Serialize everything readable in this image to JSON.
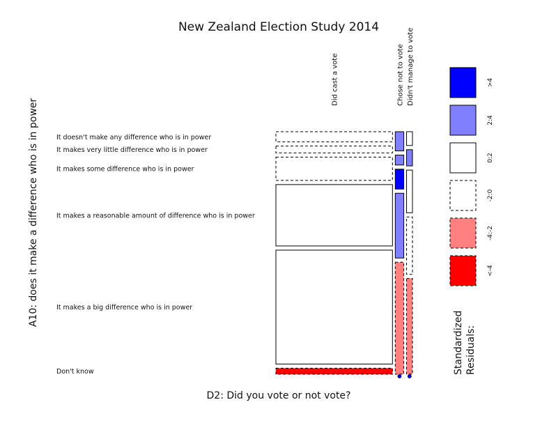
{
  "chart_data": {
    "type": "mosaic",
    "title": "New Zealand Election Study 2014",
    "xlabel": "D2: Did you vote or not vote?",
    "ylabel": "A10: does it make a difference who is in power",
    "columns": [
      "Did cast a vote",
      "Chose not to vote",
      "Didn't manage to vote"
    ],
    "rows": [
      "It doesn't make any difference who is in power",
      "It makes very little difference who is in power",
      "It makes some difference who is in power",
      "It makes a reasonable amount of difference who is in power",
      "It makes a big difference who is in power",
      "Don't know"
    ],
    "column_shares": [
      0.89,
      0.065,
      0.045
    ],
    "cell_shares": [
      [
        0.046,
        0.031,
        0.105,
        0.277,
        0.514,
        0.027
      ],
      [
        0.085,
        0.044,
        0.088,
        0.287,
        0.496,
        0.0
      ],
      [
        0.061,
        0.072,
        0.189,
        0.254,
        0.424,
        0.0
      ]
    ],
    "residual_class": [
      [
        "-2:0",
        "-2:0",
        "-2:0",
        "0:2",
        "0:2",
        "<-4"
      ],
      [
        "2:4",
        "2:4",
        ">4",
        "2:4",
        "-4:-2",
        ">4"
      ],
      [
        "0:2",
        "2:4",
        "0:2",
        "-2:0",
        "-4:-2",
        ">4"
      ]
    ],
    "legend": {
      "title_line1": "Standardized",
      "title_line2": "Residuals:",
      "entries": [
        {
          "label": ">4",
          "fill": "#0000ff",
          "dashed": false
        },
        {
          "label": "2:4",
          "fill": "#8080ff",
          "dashed": false
        },
        {
          "label": "0:2",
          "fill": "#ffffff",
          "dashed": false
        },
        {
          "label": "-2:0",
          "fill": "#ffffff",
          "dashed": true
        },
        {
          "label": "-4:-2",
          "fill": "#ff8080",
          "dashed": true
        },
        {
          "label": "<-4",
          "fill": "#ff0000",
          "dashed": true
        }
      ]
    }
  }
}
